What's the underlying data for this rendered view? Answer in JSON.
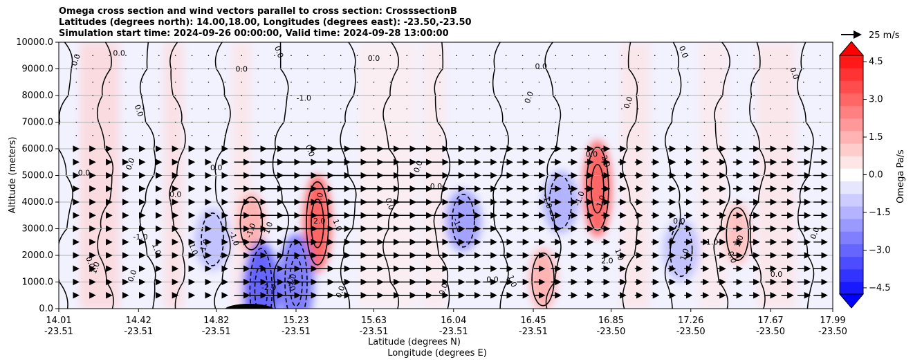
{
  "title_lines": [
    "Omega cross section and wind vectors parallel to cross section: CrosssectionB",
    "Latitudes (degrees north): 14.00,18.00, Longitudes (degrees east): -23.50,-23.50",
    "Simulation start time: 2024-09-26 00:00:00, Valid time: 2024-09-28 13:00:00"
  ],
  "quiver_key": {
    "label": "25 m/s",
    "value_ms": 25
  },
  "colors": {
    "neg_strong": "#0000ff",
    "neutral": "#ffffff",
    "pos_strong": "#ff0000",
    "contour": "#000000",
    "grid": "#b0b0b0"
  },
  "chart_data": {
    "type": "heatmap",
    "variable": "Omega",
    "title": "Omega cross section and wind vectors parallel to cross section: CrosssectionB",
    "ylabel": "Altitude (meters)",
    "xlabel": "Latitude (degrees N)",
    "xlabel2": "Longitude (degrees E)",
    "ylim": [
      0,
      10000
    ],
    "yticks": [
      0,
      1000,
      2000,
      3000,
      4000,
      5000,
      6000,
      7000,
      8000,
      9000,
      10000
    ],
    "ytick_labels": [
      "0.0",
      "1000.0",
      "2000.0",
      "3000.0",
      "4000.0",
      "5000.0",
      "6000.0",
      "7000.0",
      "8000.0",
      "9000.0",
      "10000.0"
    ],
    "xlim": [
      14.01,
      17.99
    ],
    "xticks": [
      14.01,
      14.42,
      14.82,
      15.23,
      15.63,
      16.04,
      16.45,
      16.85,
      17.26,
      17.67,
      17.99
    ],
    "xtick_labels": [
      "14.01",
      "14.42",
      "14.82",
      "15.23",
      "15.63",
      "16.04",
      "16.45",
      "16.85",
      "17.26",
      "17.67",
      "17.99"
    ],
    "xtick_labels2": [
      "-23.51",
      "-23.51",
      "-23.51",
      "-23.51",
      "-23.51",
      "-23.51",
      "-23.51",
      "-23.50",
      "-23.50",
      "-23.50",
      "-23.50"
    ],
    "grid": "horizontal",
    "colorbar": {
      "label": "Omega Pa/s",
      "range": [
        -5.25,
        5.25
      ],
      "ticks": [
        -4.5,
        -3.0,
        -1.5,
        0.0,
        1.5,
        3.0,
        4.5
      ],
      "tick_labels": [
        "−4.5",
        "−3.0",
        "−1.5",
        "0.0",
        "1.5",
        "3.0",
        "4.5"
      ],
      "levels_step": 0.5,
      "extend": "both"
    },
    "contour_levels": [
      -2.0,
      -1.0,
      0.0,
      1.0,
      2.0
    ],
    "features": [
      {
        "kind": "positive_max",
        "lat": 15.34,
        "alt": 3200,
        "value": 3.0
      },
      {
        "kind": "positive_max",
        "lat": 16.78,
        "alt": 4500,
        "value": 3.0
      },
      {
        "kind": "positive_max",
        "lat": 15.0,
        "alt": 3200,
        "value": 1.5
      },
      {
        "kind": "positive_max",
        "lat": 16.5,
        "alt": 1100,
        "value": 1.5
      },
      {
        "kind": "positive_max",
        "lat": 17.5,
        "alt": 2800,
        "value": 1.2
      },
      {
        "kind": "negative_min",
        "lat": 15.05,
        "alt": 700,
        "value": -3.0
      },
      {
        "kind": "negative_min",
        "lat": 15.23,
        "alt": 1000,
        "value": -2.5
      },
      {
        "kind": "negative_min",
        "lat": 16.09,
        "alt": 3300,
        "value": -1.8
      },
      {
        "kind": "negative_min",
        "lat": 16.59,
        "alt": 4000,
        "value": -1.5
      },
      {
        "kind": "negative_min",
        "lat": 14.8,
        "alt": 2600,
        "value": -1.2
      },
      {
        "kind": "negative_min",
        "lat": 17.21,
        "alt": 2200,
        "value": -1.2
      }
    ],
    "contour_labels": [
      {
        "lat": 14.11,
        "alt": 9300,
        "text": "0.0"
      },
      {
        "lat": 14.14,
        "alt": 5000,
        "text": "0.0"
      },
      {
        "lat": 14.16,
        "alt": 1700,
        "text": "0.0"
      },
      {
        "lat": 14.21,
        "alt": 1500,
        "text": "1.0"
      },
      {
        "lat": 14.32,
        "alt": 9500,
        "text": "0.0"
      },
      {
        "lat": 14.41,
        "alt": 7400,
        "text": "0.0"
      },
      {
        "lat": 14.39,
        "alt": 5400,
        "text": "0.0"
      },
      {
        "lat": 14.43,
        "alt": 2600,
        "text": "-1.0"
      },
      {
        "lat": 14.5,
        "alt": 2200,
        "text": "1.0"
      },
      {
        "lat": 14.4,
        "alt": 1200,
        "text": "0.0"
      },
      {
        "lat": 14.61,
        "alt": 4200,
        "text": "0.0"
      },
      {
        "lat": 14.69,
        "alt": 2200,
        "text": "1.0"
      },
      {
        "lat": 14.77,
        "alt": 2300,
        "text": "-1.0"
      },
      {
        "lat": 14.82,
        "alt": 5200,
        "text": "0.0"
      },
      {
        "lat": 14.9,
        "alt": 2600,
        "text": "-1.0"
      },
      {
        "lat": 15.01,
        "alt": 2900,
        "text": "-1.0"
      },
      {
        "lat": 14.95,
        "alt": 8900,
        "text": "0.0"
      },
      {
        "lat": 15.13,
        "alt": 9600,
        "text": "0.0"
      },
      {
        "lat": 15.1,
        "alt": 3000,
        "text": "1.0"
      },
      {
        "lat": 15.09,
        "alt": 700,
        "text": "-2.0"
      },
      {
        "lat": 15.19,
        "alt": 900,
        "text": "-2.0"
      },
      {
        "lat": 15.22,
        "alt": 1000,
        "text": "-1.0"
      },
      {
        "lat": 15.27,
        "alt": 7800,
        "text": "-1.0"
      },
      {
        "lat": 15.29,
        "alt": 5900,
        "text": "0.0"
      },
      {
        "lat": 15.36,
        "alt": 4100,
        "text": "1.0"
      },
      {
        "lat": 15.35,
        "alt": 3200,
        "text": "2.0"
      },
      {
        "lat": 15.43,
        "alt": 3100,
        "text": "1.0"
      },
      {
        "lat": 15.47,
        "alt": 600,
        "text": "0.0"
      },
      {
        "lat": 15.63,
        "alt": 9300,
        "text": "0.0"
      },
      {
        "lat": 15.7,
        "alt": 3900,
        "text": "0.0"
      },
      {
        "lat": 15.87,
        "alt": 5300,
        "text": "0.0"
      },
      {
        "lat": 15.95,
        "alt": 4500,
        "text": "0.0"
      },
      {
        "lat": 16.05,
        "alt": 3100,
        "text": "-1.0"
      },
      {
        "lat": 16.0,
        "alt": 700,
        "text": "0.0"
      },
      {
        "lat": 16.24,
        "alt": 1000,
        "text": "0.0"
      },
      {
        "lat": 16.33,
        "alt": 1000,
        "text": "1.0"
      },
      {
        "lat": 16.44,
        "alt": 7900,
        "text": "0.0"
      },
      {
        "lat": 16.49,
        "alt": 9000,
        "text": "0.0"
      },
      {
        "lat": 16.51,
        "alt": 4000,
        "text": "-1.0"
      },
      {
        "lat": 16.7,
        "alt": 4100,
        "text": "-1.0"
      },
      {
        "lat": 16.75,
        "alt": 5700,
        "text": "0.0"
      },
      {
        "lat": 16.81,
        "alt": 5500,
        "text": "2.0"
      },
      {
        "lat": 16.81,
        "alt": 4000,
        "text": "1.0"
      },
      {
        "lat": 16.83,
        "alt": 1700,
        "text": "2.0"
      },
      {
        "lat": 16.88,
        "alt": 2000,
        "text": "1.0"
      },
      {
        "lat": 16.95,
        "alt": 7700,
        "text": "0.0"
      },
      {
        "lat": 17.2,
        "alt": 3200,
        "text": "0.0"
      },
      {
        "lat": 17.21,
        "alt": 9600,
        "text": "0.0"
      },
      {
        "lat": 17.24,
        "alt": 2000,
        "text": "1.0"
      },
      {
        "lat": 17.37,
        "alt": 2400,
        "text": "1.0"
      },
      {
        "lat": 17.46,
        "alt": 1900,
        "text": "0.0"
      },
      {
        "lat": 17.52,
        "alt": 2500,
        "text": "1.0"
      },
      {
        "lat": 17.7,
        "alt": 1200,
        "text": "0.0"
      },
      {
        "lat": 17.78,
        "alt": 8800,
        "text": "0.0"
      },
      {
        "lat": 17.91,
        "alt": 2800,
        "text": "0.0"
      }
    ],
    "wind_vectors": {
      "units": "m/s",
      "reference": 25,
      "description": "horizontal wind parallel to section, stronger (~20-25 m/s) below 6000 m at latitudes 15.0-17.99"
    }
  }
}
